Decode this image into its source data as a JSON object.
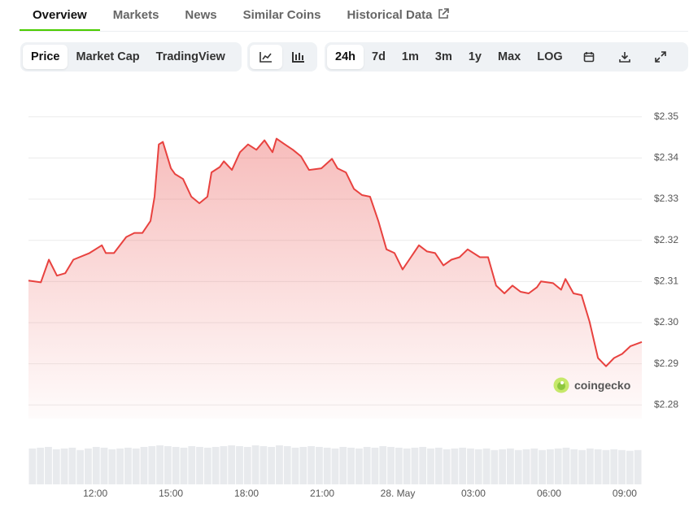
{
  "tabs": [
    "Overview",
    "Markets",
    "News",
    "Similar Coins",
    "Historical Data"
  ],
  "metric_buttons": [
    "Price",
    "Market Cap",
    "TradingView"
  ],
  "range_buttons": [
    "24h",
    "7d",
    "1m",
    "3m",
    "1y",
    "Max",
    "LOG"
  ],
  "watermark": "coingecko",
  "chart_data": {
    "type": "line",
    "color": "#e8423f",
    "x": [
      9.35,
      9.84,
      10.16,
      10.48,
      10.81,
      11.13,
      11.77,
      12.26,
      12.42,
      12.74,
      13.23,
      13.55,
      13.87,
      14.19,
      14.35,
      14.52,
      14.68,
      15.0,
      15.16,
      15.48,
      15.81,
      16.13,
      16.45,
      16.61,
      16.94,
      17.1,
      17.42,
      17.74,
      18.06,
      18.39,
      18.71,
      19.03,
      19.19,
      19.52,
      19.84,
      20.16,
      20.48,
      20.97,
      21.39,
      21.61,
      21.94,
      22.26,
      22.58,
      22.9,
      23.23,
      23.55,
      23.87,
      24.19,
      24.52,
      24.84,
      25.16,
      25.48,
      25.81,
      26.13,
      26.45,
      26.77,
      27.26,
      27.58,
      27.9,
      28.23,
      28.55,
      28.87,
      29.19,
      29.52,
      29.68,
      30.16,
      30.48,
      30.65,
      30.97,
      31.29,
      31.61,
      31.94,
      32.26,
      32.58,
      32.9,
      33.23,
      33.68
    ],
    "values": [
      2.3102,
      2.3098,
      2.3153,
      2.3114,
      2.312,
      2.3153,
      2.3169,
      2.3188,
      2.3169,
      2.3169,
      2.3208,
      2.3218,
      2.3218,
      2.3247,
      2.3306,
      2.3433,
      2.3439,
      2.3375,
      2.3361,
      2.3349,
      2.3306,
      2.329,
      2.3306,
      2.3365,
      2.3378,
      2.3392,
      2.3371,
      2.3414,
      2.3433,
      2.342,
      2.3443,
      2.3414,
      2.3447,
      2.3433,
      2.342,
      2.3404,
      2.3371,
      2.3375,
      2.3398,
      2.3375,
      2.3365,
      2.3325,
      2.331,
      2.3306,
      2.3247,
      2.3178,
      2.3169,
      2.3129,
      2.3159,
      2.3188,
      2.3173,
      2.3169,
      2.3139,
      2.3153,
      2.3159,
      2.3178,
      2.3159,
      2.3159,
      2.309,
      2.3071,
      2.309,
      2.3075,
      2.3071,
      2.3086,
      2.31,
      2.3096,
      2.308,
      2.3106,
      2.3071,
      2.3067,
      2.3002,
      2.2914,
      2.2894,
      2.2914,
      2.2924,
      2.2943,
      2.2953
    ],
    "volume": [
      46,
      47,
      48,
      45,
      46,
      47,
      44,
      46,
      48,
      47,
      45,
      46,
      47,
      46,
      48,
      49,
      50,
      49,
      48,
      47,
      49,
      48,
      47,
      48,
      49,
      50,
      49,
      48,
      50,
      49,
      48,
      50,
      49,
      47,
      48,
      49,
      48,
      47,
      46,
      48,
      47,
      46,
      48,
      47,
      49,
      48,
      47,
      46,
      47,
      48,
      46,
      47,
      45,
      46,
      47,
      46,
      45,
      46,
      44,
      45,
      46,
      44,
      45,
      46,
      44,
      45,
      46,
      47,
      45,
      44,
      46,
      45,
      44,
      45,
      44,
      43,
      44
    ],
    "xlim": [
      9.35,
      33.68
    ],
    "ylim": [
      2.2767,
      2.3537
    ],
    "yticks": [
      {
        "value": 2.28,
        "label": "$2.28"
      },
      {
        "value": 2.29,
        "label": "$2.29"
      },
      {
        "value": 2.3,
        "label": "$2.30"
      },
      {
        "value": 2.31,
        "label": "$2.31"
      },
      {
        "value": 2.32,
        "label": "$2.32"
      },
      {
        "value": 2.33,
        "label": "$2.33"
      },
      {
        "value": 2.34,
        "label": "$2.34"
      },
      {
        "value": 2.35,
        "label": "$2.35"
      }
    ],
    "xticks": [
      {
        "value": 12,
        "label": "12:00"
      },
      {
        "value": 15,
        "label": "15:00"
      },
      {
        "value": 18,
        "label": "18:00"
      },
      {
        "value": 21,
        "label": "21:00"
      },
      {
        "value": 24,
        "label": "28. May"
      },
      {
        "value": 27,
        "label": "03:00"
      },
      {
        "value": 30,
        "label": "06:00"
      },
      {
        "value": 33,
        "label": "09:00"
      }
    ],
    "grid": true
  }
}
